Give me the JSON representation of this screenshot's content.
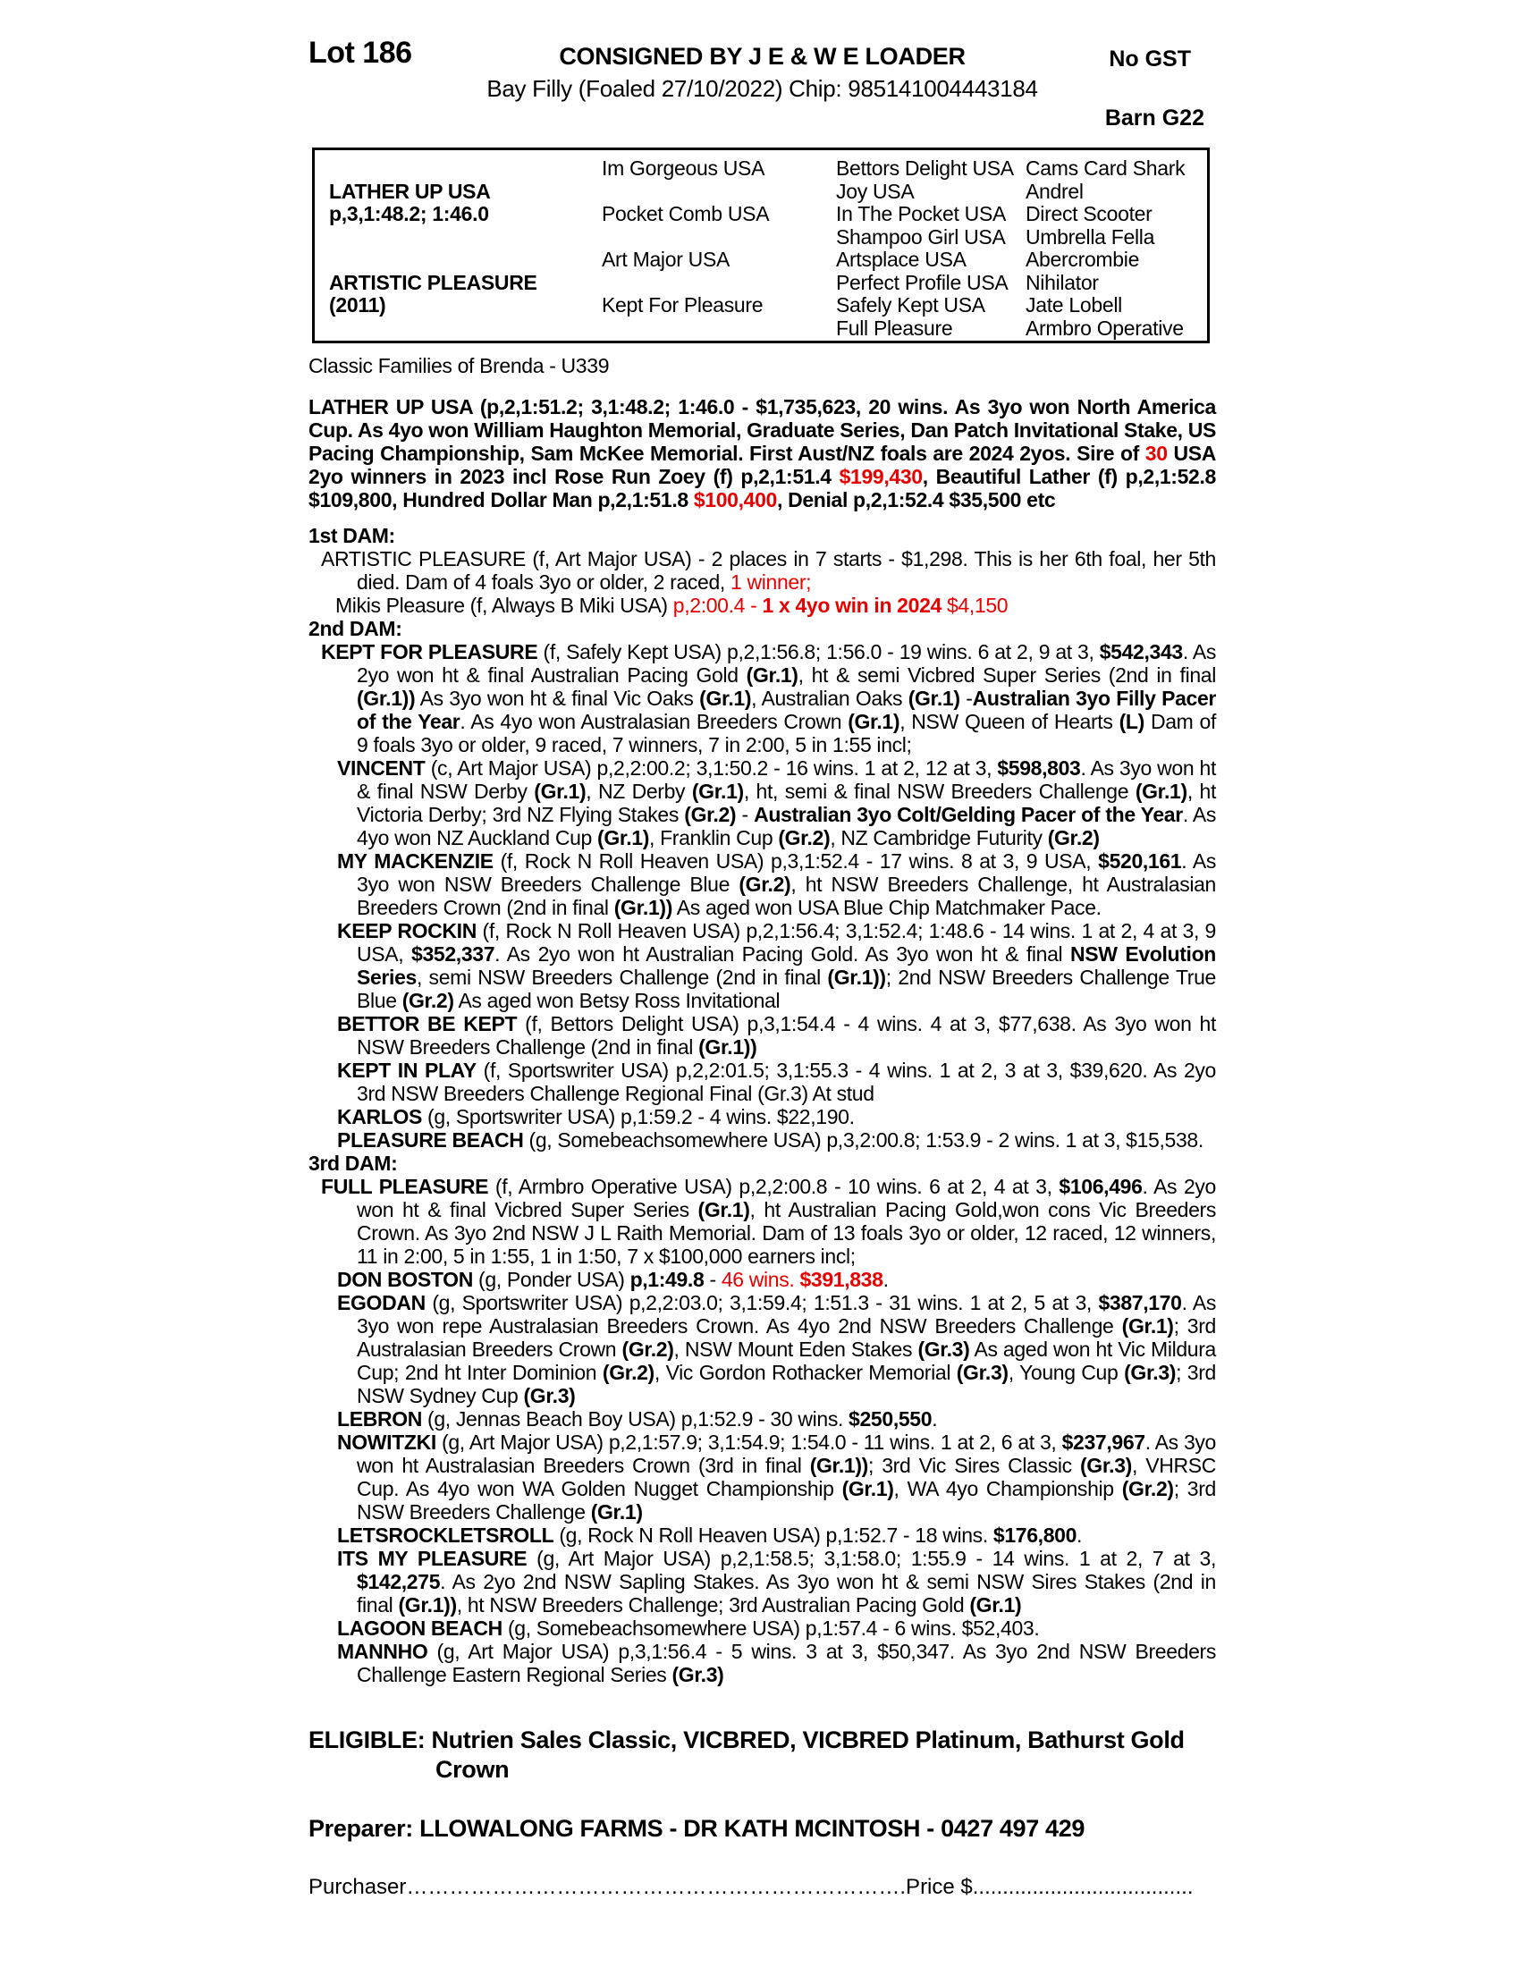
{
  "colors": {
    "highlight_red": "#e60000"
  },
  "header": {
    "lot": "Lot 186",
    "consigned": "CONSIGNED BY J E & W E LOADER",
    "no_gst": "No GST",
    "foaling": "Bay Filly (Foaled 27/10/2022) Chip: 985141004443184",
    "barn": "Barn G22"
  },
  "pedigree_table": {
    "rows": [
      [
        "",
        "Im Gorgeous USA",
        "Bettors Delight USA",
        "Cams Card Shark"
      ],
      [
        "LATHER UP USA",
        "",
        "Joy USA",
        "Andrel"
      ],
      [
        "p,3,1:48.2; 1:46.0",
        "Pocket Comb USA",
        "In The Pocket USA",
        "Direct Scooter"
      ],
      [
        "",
        "",
        "Shampoo Girl USA",
        "Umbrella Fella"
      ],
      [
        "",
        "Art Major USA",
        "Artsplace USA",
        "Abercrombie"
      ],
      [
        "ARTISTIC PLEASURE",
        "",
        "Perfect Profile USA",
        "Nihilator"
      ],
      [
        "(2011)",
        "Kept For Pleasure",
        "Safely Kept USA",
        "Jate Lobell"
      ],
      [
        "",
        "",
        "Full Pleasure",
        "Armbro Operative"
      ]
    ]
  },
  "blocks": [
    {
      "name": "family-line",
      "cls": "family",
      "runs": [
        {
          "t": "Classic Families of Brenda - U339"
        }
      ]
    },
    {
      "name": "sire-para",
      "cls": "sire",
      "runs": [
        {
          "t": "LATHER UP USA (p,2,1:51.2; 3,1:48.2; 1:46.0 - $1,735,623, 20 wins. As 3yo won North America Cup. As 4yo won William Haughton Memorial, Graduate Series, Dan Patch Invitational Stake, US Pacing Championship, Sam McKee Memorial. First Aust/NZ foals are 2024 2yos. Sire of ",
          "b": true
        },
        {
          "t": "30",
          "b": true,
          "r": true
        },
        {
          "t": " USA 2yo winners in 2023 incl Rose Run Zoey (f) p,2,1:51.4 ",
          "b": true
        },
        {
          "t": "$199,430",
          "b": true,
          "r": true
        },
        {
          "t": ", Beautiful Lather (f) p,2,1:52.8 $109,800, Hundred Dollar Man p,2,1:51.8 ",
          "b": true
        },
        {
          "t": "$100,400",
          "b": true,
          "r": true
        },
        {
          "t": ", Denial p,2,1:52.4 $35,500 etc",
          "b": true
        }
      ]
    },
    {
      "name": "dam1-heading",
      "cls": "head",
      "runs": [
        {
          "t": "1st DAM:",
          "b": true
        }
      ]
    },
    {
      "name": "para-artistic-pleasure",
      "cls": "dam",
      "runs": [
        {
          "t": "ARTISTIC PLEASURE (f, Art Major USA) - 2 places in 7 starts - $1,298. This is her 6th foal, her 5th died. Dam of 4 foals 3yo or older, 2 raced, "
        },
        {
          "t": "1 winner;",
          "r": true
        }
      ]
    },
    {
      "name": "para-mikis-pleasure",
      "cls": "sub",
      "runs": [
        {
          "t": "Mikis Pleasure (f, Always B Miki USA) "
        },
        {
          "t": "p,2:00.4 - ",
          "r": true
        },
        {
          "t": "1 x 4yo win in 2024",
          "b": true,
          "r": true
        },
        {
          "t": " $4,150",
          "r": true
        }
      ]
    },
    {
      "name": "dam2-heading",
      "cls": "head",
      "runs": [
        {
          "t": "2nd DAM:",
          "b": true
        }
      ]
    },
    {
      "name": "para-kept-for-pleasure",
      "cls": "dam",
      "runs": [
        {
          "t": "KEPT FOR PLEASURE",
          "b": true
        },
        {
          "t": " (f, Safely Kept USA) p,2,1:56.8; 1:56.0 - 19 wins. 6 at 2, 9 at 3, "
        },
        {
          "t": "$542,343",
          "b": true
        },
        {
          "t": ". As 2yo won ht & final Australian Pacing Gold "
        },
        {
          "t": "(Gr.1)",
          "b": true
        },
        {
          "t": ", ht & semi Vicbred Super Series (2nd in final "
        },
        {
          "t": "(Gr.1))",
          "b": true
        },
        {
          "t": " As 3yo won ht & final Vic Oaks "
        },
        {
          "t": "(Gr.1)",
          "b": true
        },
        {
          "t": ", Australian Oaks "
        },
        {
          "t": "(Gr.1)",
          "b": true
        },
        {
          "t": " -"
        },
        {
          "t": "Australian 3yo Filly Pacer of the Year",
          "b": true
        },
        {
          "t": ". As 4yo won Australasian Breeders Crown "
        },
        {
          "t": "(Gr.1)",
          "b": true
        },
        {
          "t": ", NSW Queen of Hearts "
        },
        {
          "t": "(L)",
          "b": true
        },
        {
          "t": " Dam of 9 foals 3yo or older, 9 raced, 7 winners, 7 in 2:00, 5 in 1:55 incl;"
        }
      ]
    },
    {
      "name": "para-vincent",
      "cls": "foal",
      "runs": [
        {
          "t": "VINCENT",
          "b": true
        },
        {
          "t": " (c, Art Major USA) p,2,2:00.2; 3,1:50.2 - 16 wins. 1 at 2, 12 at 3, "
        },
        {
          "t": "$598,803",
          "b": true
        },
        {
          "t": ". As 3yo won ht & final NSW Derby "
        },
        {
          "t": "(Gr.1)",
          "b": true
        },
        {
          "t": ", NZ Derby "
        },
        {
          "t": "(Gr.1)",
          "b": true
        },
        {
          "t": ", ht, semi & final NSW Breeders Challenge "
        },
        {
          "t": "(Gr.1)",
          "b": true
        },
        {
          "t": ", ht Victoria Derby; 3rd NZ Flying Stakes "
        },
        {
          "t": "(Gr.2)",
          "b": true
        },
        {
          "t": " - "
        },
        {
          "t": "Australian 3yo Colt/Gelding Pacer of the Year",
          "b": true
        },
        {
          "t": ". As 4yo won NZ Auckland Cup "
        },
        {
          "t": "(Gr.1)",
          "b": true
        },
        {
          "t": ", Franklin Cup "
        },
        {
          "t": "(Gr.2)",
          "b": true
        },
        {
          "t": ", NZ Cambridge Futurity "
        },
        {
          "t": "(Gr.2)",
          "b": true
        }
      ]
    },
    {
      "name": "para-my-mackenzie",
      "cls": "foal",
      "runs": [
        {
          "t": "MY MACKENZIE",
          "b": true
        },
        {
          "t": " (f, Rock N Roll Heaven USA) p,3,1:52.4 - 17 wins. 8 at 3, 9 USA, "
        },
        {
          "t": "$520,161",
          "b": true
        },
        {
          "t": ". As 3yo won NSW Breeders Challenge Blue "
        },
        {
          "t": "(Gr.2)",
          "b": true
        },
        {
          "t": ", ht NSW Breeders Challenge, ht Australasian Breeders Crown (2nd in final "
        },
        {
          "t": "(Gr.1))",
          "b": true
        },
        {
          "t": " As aged won USA Blue Chip Matchmaker Pace."
        }
      ]
    },
    {
      "name": "para-keep-rockin",
      "cls": "foal",
      "runs": [
        {
          "t": "KEEP ROCKIN",
          "b": true
        },
        {
          "t": " (f, Rock N Roll Heaven USA) p,2,1:56.4; 3,1:52.4; 1:48.6 - 14 wins. 1 at 2, 4 at 3, 9 USA, "
        },
        {
          "t": "$352,337",
          "b": true
        },
        {
          "t": ". As 2yo won ht Australian Pacing Gold. As 3yo won ht & final "
        },
        {
          "t": "NSW Evolution Series",
          "b": true
        },
        {
          "t": ", semi NSW Breeders Challenge (2nd in final "
        },
        {
          "t": "(Gr.1))",
          "b": true
        },
        {
          "t": "; 2nd NSW Breeders Challenge True Blue "
        },
        {
          "t": "(Gr.2)",
          "b": true
        },
        {
          "t": " As aged won Betsy Ross Invitational"
        }
      ]
    },
    {
      "name": "para-bettor-be-kept",
      "cls": "foal",
      "runs": [
        {
          "t": "BETTOR BE KEPT",
          "b": true
        },
        {
          "t": " (f, Bettors Delight USA) p,3,1:54.4 - 4 wins. 4 at 3, $77,638. As 3yo won ht NSW Breeders Challenge (2nd in final "
        },
        {
          "t": "(Gr.1))",
          "b": true
        }
      ]
    },
    {
      "name": "para-kept-in-play",
      "cls": "foal",
      "runs": [
        {
          "t": "KEPT IN PLAY",
          "b": true
        },
        {
          "t": " (f, Sportswriter USA) p,2,2:01.5; 3,1:55.3 - 4 wins. 1 at 2, 3 at 3, $39,620. As 2yo 3rd NSW Breeders Challenge Regional Final (Gr.3) At stud"
        }
      ]
    },
    {
      "name": "para-karlos",
      "cls": "foal",
      "runs": [
        {
          "t": "KARLOS",
          "b": true
        },
        {
          "t": " (g, Sportswriter USA) p,1:59.2 - 4 wins. $22,190."
        }
      ]
    },
    {
      "name": "para-pleasure-beach",
      "cls": "foal",
      "runs": [
        {
          "t": "PLEASURE BEACH",
          "b": true
        },
        {
          "t": " (g, Somebeachsomewhere USA) p,3,2:00.8; 1:53.9 - 2 wins. 1 at 3, $15,538."
        }
      ]
    },
    {
      "name": "dam3-heading",
      "cls": "head",
      "runs": [
        {
          "t": "3rd DAM:",
          "b": true
        }
      ]
    },
    {
      "name": "para-full-pleasure",
      "cls": "dam",
      "runs": [
        {
          "t": "FULL PLEASURE",
          "b": true
        },
        {
          "t": " (f, Armbro Operative USA) p,2,2:00.8 - 10 wins. 6 at 2, 4 at 3, "
        },
        {
          "t": "$106,496",
          "b": true
        },
        {
          "t": ". As 2yo won ht & final Vicbred Super Series "
        },
        {
          "t": "(Gr.1)",
          "b": true
        },
        {
          "t": ", ht Australian Pacing Gold,won cons Vic Breeders Crown. As 3yo 2nd NSW J L Raith Memorial. Dam of 13 foals 3yo or older, 12 raced, 12 winners, 11 in 2:00, 5 in 1:55, 1 in 1:50, 7 x $100,000 earners incl;"
        }
      ]
    },
    {
      "name": "para-don-boston",
      "cls": "foal",
      "runs": [
        {
          "t": "DON BOSTON",
          "b": true
        },
        {
          "t": " (g, Ponder USA) "
        },
        {
          "t": "p,1:49.8",
          "b": true
        },
        {
          "t": " - "
        },
        {
          "t": "46 wins. ",
          "r": true
        },
        {
          "t": "$391,838",
          "b": true,
          "r": true
        },
        {
          "t": "."
        }
      ]
    },
    {
      "name": "para-egodan",
      "cls": "foal",
      "runs": [
        {
          "t": "EGODAN",
          "b": true
        },
        {
          "t": " (g, Sportswriter USA) p,2,2:03.0; 3,1:59.4; 1:51.3 - 31 wins. 1 at 2, 5 at 3, "
        },
        {
          "t": "$387,170",
          "b": true
        },
        {
          "t": ". As 3yo won repe Australasian Breeders Crown. As 4yo 2nd NSW Breeders Challenge "
        },
        {
          "t": "(Gr.1)",
          "b": true
        },
        {
          "t": "; 3rd Australasian Breeders Crown "
        },
        {
          "t": "(Gr.2)",
          "b": true
        },
        {
          "t": ", NSW Mount Eden Stakes "
        },
        {
          "t": "(Gr.3)",
          "b": true
        },
        {
          "t": " As aged won ht Vic Mildura Cup; 2nd ht Inter Dominion "
        },
        {
          "t": "(Gr.2)",
          "b": true
        },
        {
          "t": ", Vic Gordon Rothacker Memorial "
        },
        {
          "t": "(Gr.3)",
          "b": true
        },
        {
          "t": ", Young Cup "
        },
        {
          "t": "(Gr.3)",
          "b": true
        },
        {
          "t": "; 3rd NSW Sydney Cup "
        },
        {
          "t": "(Gr.3)",
          "b": true
        }
      ]
    },
    {
      "name": "para-lebron",
      "cls": "foal",
      "runs": [
        {
          "t": "LEBRON",
          "b": true
        },
        {
          "t": " (g, Jennas Beach Boy USA) p,1:52.9 - 30 wins. "
        },
        {
          "t": "$250,550",
          "b": true
        },
        {
          "t": "."
        }
      ]
    },
    {
      "name": "para-nowitzki",
      "cls": "foal",
      "runs": [
        {
          "t": "NOWITZKI",
          "b": true
        },
        {
          "t": " (g, Art Major USA) p,2,1:57.9; 3,1:54.9; 1:54.0 - 11 wins. 1 at 2, 6 at 3, "
        },
        {
          "t": "$237,967",
          "b": true
        },
        {
          "t": ". As 3yo won ht Australasian Breeders Crown (3rd in final "
        },
        {
          "t": "(Gr.1))",
          "b": true
        },
        {
          "t": "; 3rd Vic Sires Classic "
        },
        {
          "t": "(Gr.3)",
          "b": true
        },
        {
          "t": ", VHRSC Cup. As 4yo won WA Golden Nugget Championship "
        },
        {
          "t": "(Gr.1)",
          "b": true
        },
        {
          "t": ", WA 4yo Championship "
        },
        {
          "t": "(Gr.2)",
          "b": true
        },
        {
          "t": "; 3rd NSW Breeders Challenge "
        },
        {
          "t": "(Gr.1)",
          "b": true
        }
      ]
    },
    {
      "name": "para-letsrockletsroll",
      "cls": "foal",
      "runs": [
        {
          "t": "LETSROCKLETSROLL",
          "b": true
        },
        {
          "t": " (g, Rock N Roll Heaven USA) p,1:52.7 - 18 wins. "
        },
        {
          "t": "$176,800",
          "b": true
        },
        {
          "t": "."
        }
      ]
    },
    {
      "name": "para-its-my-pleasure",
      "cls": "foal",
      "runs": [
        {
          "t": "ITS MY PLEASURE",
          "b": true
        },
        {
          "t": " (g, Art Major USA) p,2,1:58.5; 3,1:58.0; 1:55.9 - 14 wins. 1 at 2, 7 at 3, "
        },
        {
          "t": "$142,275",
          "b": true
        },
        {
          "t": ". As 2yo 2nd NSW Sapling Stakes. As 3yo won ht & semi NSW Sires Stakes (2nd in final "
        },
        {
          "t": "(Gr.1))",
          "b": true
        },
        {
          "t": ", ht NSW Breeders Challenge; 3rd Australian Pacing Gold "
        },
        {
          "t": "(Gr.1)",
          "b": true
        }
      ]
    },
    {
      "name": "para-lagoon-beach",
      "cls": "foal",
      "runs": [
        {
          "t": "LAGOON BEACH",
          "b": true
        },
        {
          "t": " (g, Somebeachsomewhere USA) p,1:57.4 - 6 wins. $52,403."
        }
      ]
    },
    {
      "name": "para-mannho",
      "cls": "foal",
      "runs": [
        {
          "t": "MANNHO",
          "b": true
        },
        {
          "t": " (g, Art Major USA) p,3,1:56.4 - 5 wins. 3 at 3, $50,347. As 3yo 2nd NSW Breeders Challenge Eastern Regional Series "
        },
        {
          "t": "(Gr.3)",
          "b": true
        }
      ]
    },
    {
      "name": "eligible-line",
      "cls": "eligible",
      "runs": [
        {
          "t": "ELIGIBLE: Nutrien Sales Classic, VICBRED, VICBRED Platinum, Bathurst Gold\nCrown",
          "b": true
        }
      ]
    },
    {
      "name": "preparer-line",
      "cls": "preparer",
      "runs": [
        {
          "t": "Preparer: LLOWALONG FARMS - DR KATH MCINTOSH - 0427 497 429",
          "b": true
        }
      ]
    },
    {
      "name": "purchaser-line",
      "cls": "purchline",
      "runs": [
        {
          "t": "Purchaser"
        },
        {
          "t": "……………………………………………………………"
        },
        {
          "t": ".Price $"
        },
        {
          "t": "....................................."
        }
      ]
    }
  ]
}
